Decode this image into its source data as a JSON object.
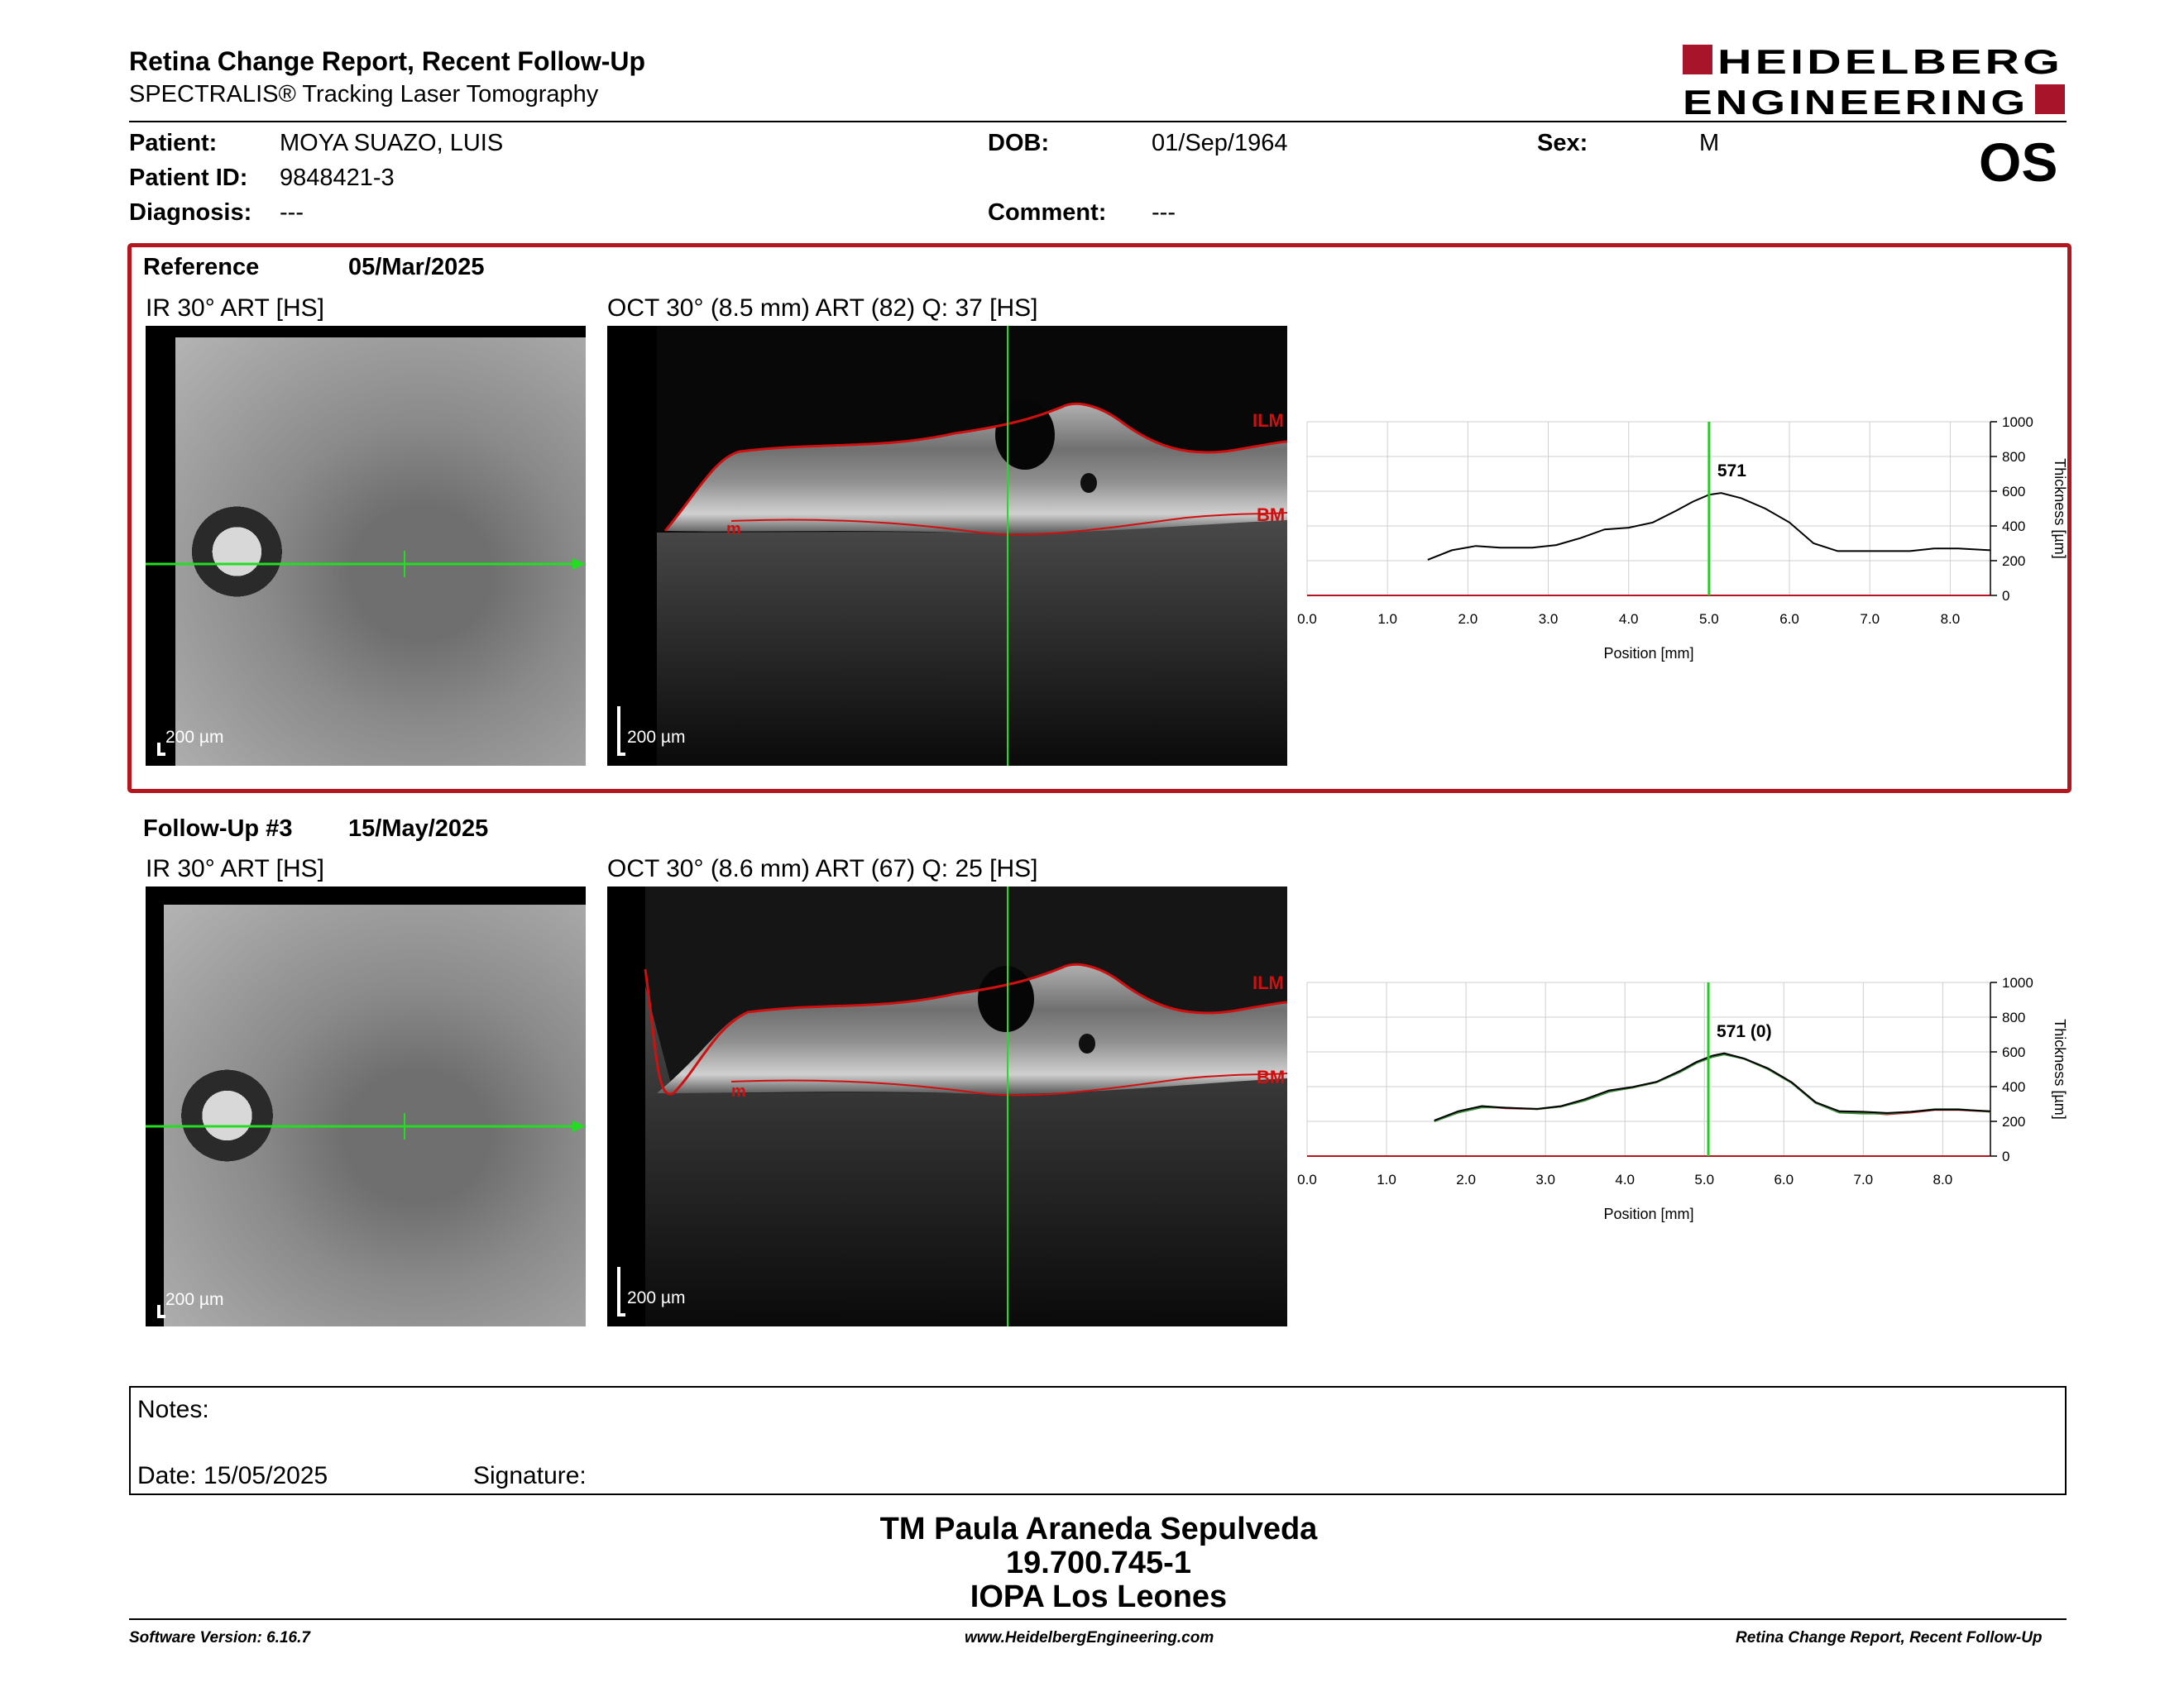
{
  "header": {
    "title": "Retina Change Report, Recent Follow-Up",
    "subtitle": "SPECTRALIS® Tracking Laser Tomography",
    "logo_line1": "HEIDELBERG",
    "logo_line2": "ENGINEERING",
    "brand_color": "#a8142a",
    "eye": "OS"
  },
  "patient": {
    "name_label": "Patient:",
    "name": "MOYA SUAZO, LUIS",
    "id_label": "Patient ID:",
    "id": "9848421-3",
    "diagnosis_label": "Diagnosis:",
    "diagnosis": "---",
    "dob_label": "DOB:",
    "dob": "01/Sep/1964",
    "comment_label": "Comment:",
    "comment": "---",
    "sex_label": "Sex:",
    "sex": "M"
  },
  "exams": [
    {
      "label": "Reference",
      "date": "05/Mar/2025",
      "ir_caption": "IR 30° ART [HS]",
      "oct_caption": "OCT 30° (8.5 mm) ART (82) Q: 37 [HS]",
      "scale": "200 µm",
      "ilm": "ILM",
      "bm": "BM",
      "value_label": "571"
    },
    {
      "label": "Follow-Up #3",
      "date": "15/May/2025",
      "ir_caption": "IR 30° ART [HS]",
      "oct_caption": "OCT 30° (8.6 mm) ART (67) Q: 25 [HS]",
      "scale": "200 µm",
      "ilm": "ILM",
      "bm": "BM",
      "value_label": "571 (0)"
    }
  ],
  "chart_data": [
    {
      "type": "line",
      "xlabel": "Position [mm]",
      "ylabel": "Thickness [µm]",
      "xlim": [
        0,
        8.5
      ],
      "ylim": [
        0,
        1000
      ],
      "xticks": [
        "0.0",
        "1.0",
        "2.0",
        "3.0",
        "4.0",
        "5.0",
        "6.0",
        "7.0",
        "8.0"
      ],
      "yticks": [
        "0",
        "200",
        "400",
        "600",
        "800",
        "1000"
      ],
      "marker_x": 5.0,
      "annotation": "571",
      "series": [
        {
          "color": "#000000",
          "x": [
            1.5,
            1.8,
            2.1,
            2.4,
            2.8,
            3.1,
            3.4,
            3.7,
            4.0,
            4.3,
            4.6,
            4.8,
            5.0,
            5.15,
            5.4,
            5.7,
            6.0,
            6.3,
            6.6,
            6.9,
            7.2,
            7.5,
            7.8,
            8.1,
            8.5
          ],
          "y": [
            205,
            260,
            285,
            275,
            275,
            290,
            330,
            380,
            390,
            420,
            490,
            540,
            580,
            590,
            560,
            500,
            420,
            300,
            255,
            255,
            255,
            255,
            270,
            270,
            260
          ]
        }
      ]
    },
    {
      "type": "line",
      "xlabel": "Position [mm]",
      "ylabel": "Thickness [µm]",
      "xlim": [
        0,
        8.6
      ],
      "ylim": [
        0,
        1000
      ],
      "xticks": [
        "0.0",
        "1.0",
        "2.0",
        "3.0",
        "4.0",
        "5.0",
        "6.0",
        "7.0",
        "8.0"
      ],
      "yticks": [
        "0",
        "200",
        "400",
        "600",
        "800",
        "1000"
      ],
      "marker_x": 5.05,
      "annotation": "571 (0)",
      "series": [
        {
          "color": "#c23a3a",
          "x": [
            1.6,
            1.9,
            2.2,
            2.5,
            2.9,
            3.2,
            3.5,
            3.8,
            4.1,
            4.4,
            4.7,
            4.9,
            5.1,
            5.25,
            5.5,
            5.8,
            6.1,
            6.4,
            6.7,
            7.0,
            7.3,
            7.6,
            7.9,
            8.2,
            8.6
          ],
          "y": [
            200,
            255,
            285,
            275,
            270,
            285,
            325,
            375,
            395,
            425,
            490,
            540,
            575,
            590,
            560,
            505,
            425,
            310,
            255,
            250,
            240,
            250,
            265,
            265,
            255
          ]
        },
        {
          "color": "#3a8a3a",
          "x": [
            1.6,
            1.9,
            2.2,
            2.5,
            2.9,
            3.2,
            3.5,
            3.8,
            4.1,
            4.4,
            4.7,
            4.9,
            5.1,
            5.25,
            5.5,
            5.8,
            6.1,
            6.4,
            6.7,
            7.0,
            7.3,
            7.6,
            7.9,
            8.2,
            8.6
          ],
          "y": [
            200,
            250,
            280,
            280,
            270,
            285,
            320,
            370,
            395,
            425,
            485,
            535,
            570,
            585,
            560,
            500,
            420,
            305,
            250,
            245,
            245,
            255,
            270,
            270,
            255
          ]
        },
        {
          "color": "#000000",
          "x": [
            1.6,
            1.9,
            2.2,
            2.5,
            2.9,
            3.2,
            3.5,
            3.8,
            4.1,
            4.4,
            4.7,
            4.9,
            5.1,
            5.25,
            5.5,
            5.8,
            6.1,
            6.4,
            6.7,
            7.0,
            7.3,
            7.6,
            7.9,
            8.2,
            8.6
          ],
          "y": [
            205,
            258,
            288,
            278,
            272,
            288,
            328,
            378,
            398,
            428,
            492,
            542,
            578,
            592,
            562,
            505,
            425,
            310,
            258,
            255,
            248,
            255,
            268,
            268,
            258
          ]
        }
      ]
    }
  ],
  "notes": {
    "label": "Notes:",
    "date_label": "Date: 15/05/2025",
    "signature_label": "Signature:"
  },
  "signature": {
    "name": "TM Paula Araneda Sepulveda",
    "rut": "19.700.745-1",
    "clinic": "IOPA Los Leones"
  },
  "footer": {
    "version": "Software Version: 6.16.7",
    "url": "www.HeidelbergEngineering.com",
    "report": "Retina Change Report, Recent Follow-Up"
  },
  "colors": {
    "frame_red": "#b3161e",
    "scan_green": "#22dd22",
    "segment_red": "#d01010"
  }
}
